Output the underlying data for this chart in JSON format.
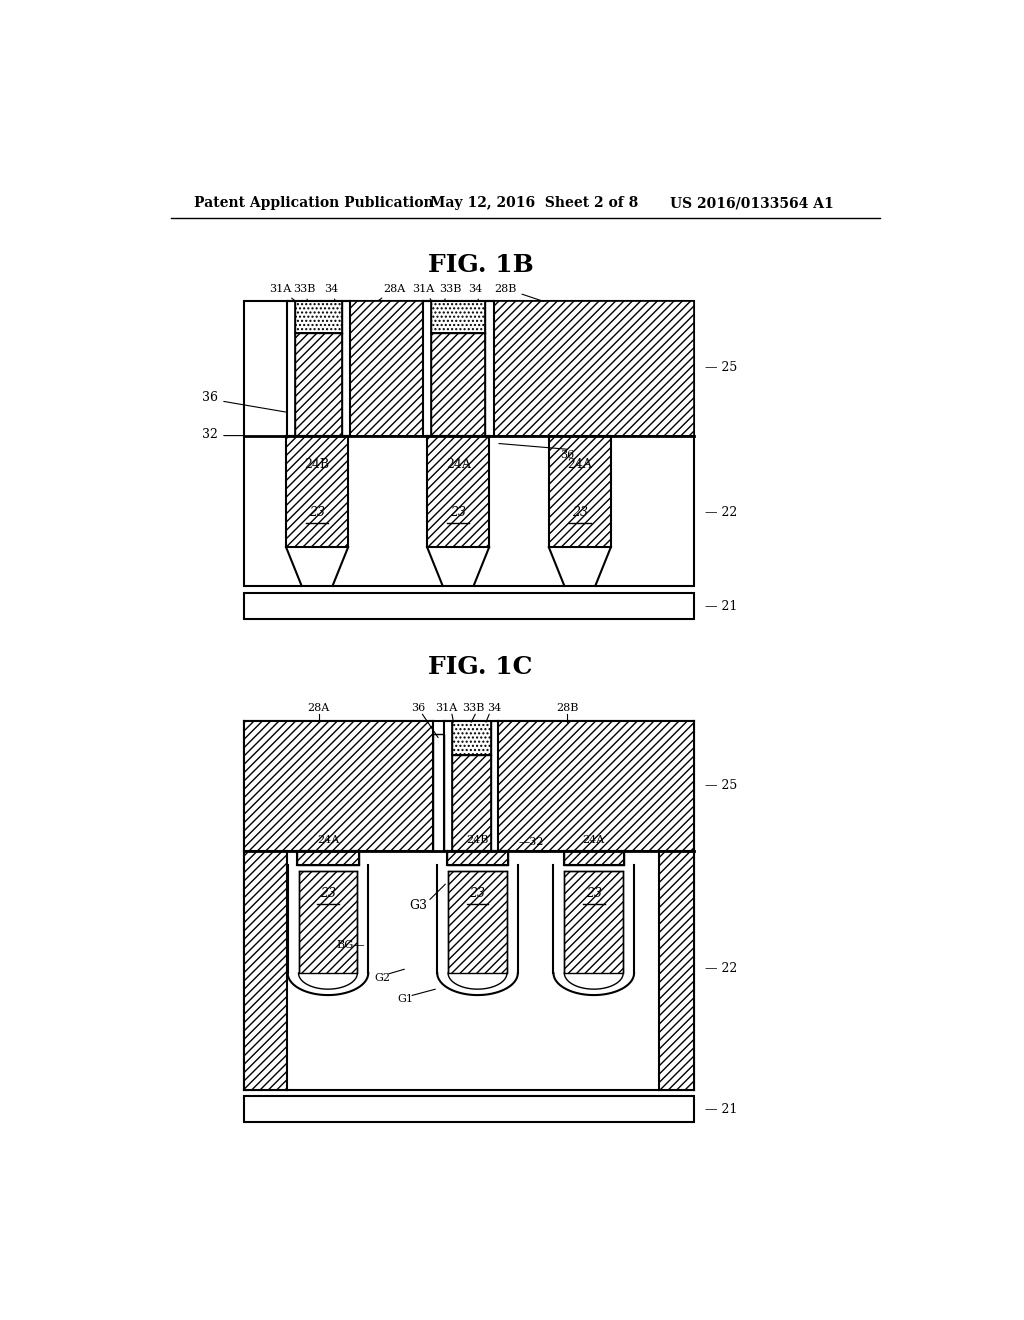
{
  "header_left": "Patent Application Publication",
  "header_mid": "May 12, 2016  Sheet 2 of 8",
  "header_right": "US 2016/0133564 A1",
  "fig1b_title": "FIG. 1B",
  "fig1c_title": "FIG. 1C",
  "bg_color": "#ffffff",
  "line_color": "#000000"
}
